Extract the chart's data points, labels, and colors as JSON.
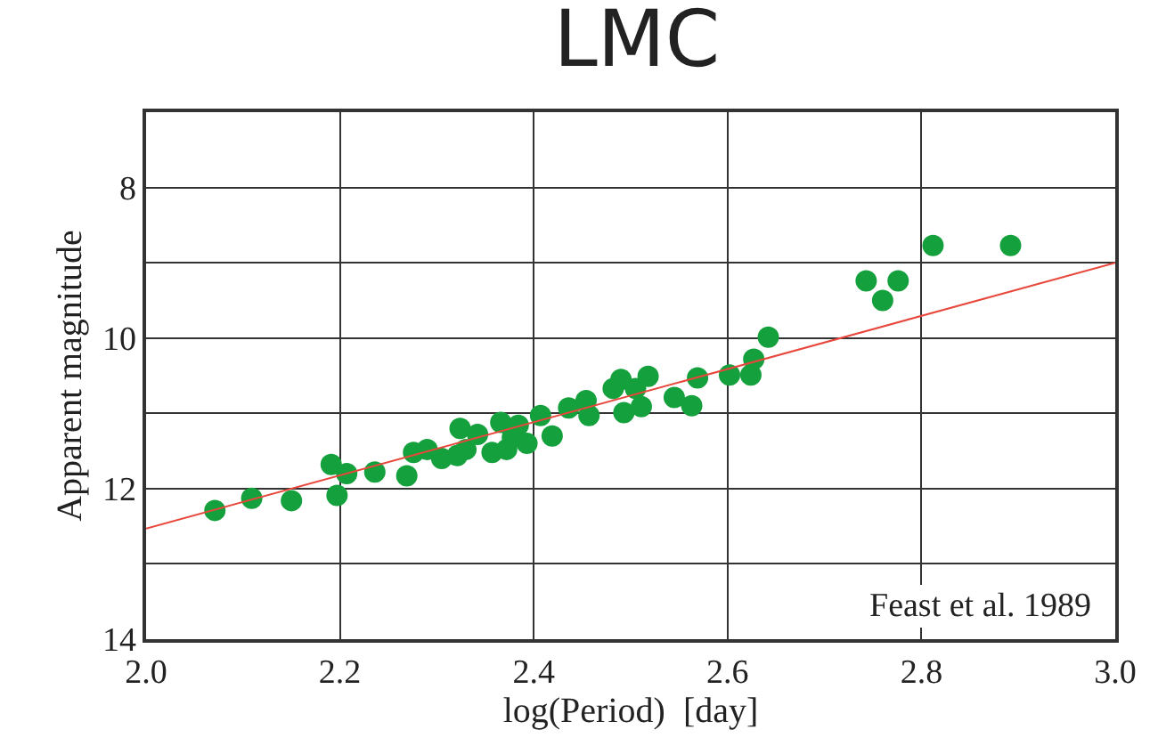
{
  "chart_data": {
    "type": "scatter",
    "title": "LMC",
    "xlabel": "log(Period)  [day]",
    "ylabel": "Apparent magnitude",
    "xlim": [
      2.0,
      3.0
    ],
    "ylim": [
      14,
      7
    ],
    "xticks": [
      {
        "value": 2.0,
        "label": "2.0"
      },
      2.2,
      2.4,
      2.6,
      2.8,
      {
        "value": 3.0,
        "label": "3.0"
      }
    ],
    "yticks": [
      8,
      {
        "value": 9,
        "label": null
      },
      10,
      {
        "value": 11,
        "label": null
      },
      12,
      {
        "value": 13,
        "label": null
      },
      14
    ],
    "grid": true,
    "marker": "circle",
    "annotations": [
      "Feast et al. 1989"
    ],
    "series": [
      {
        "color": "#14a03c",
        "x": [
          2.071,
          2.109,
          2.15,
          2.191,
          2.207,
          2.197,
          2.236,
          2.269,
          2.276,
          2.29,
          2.305,
          2.321,
          2.33,
          2.324,
          2.342,
          2.357,
          2.372,
          2.366,
          2.384,
          2.378,
          2.393,
          2.407,
          2.419,
          2.436,
          2.454,
          2.457,
          2.482,
          2.49,
          2.493,
          2.505,
          2.518,
          2.511,
          2.545,
          2.563,
          2.569,
          2.602,
          2.624,
          2.627,
          2.642,
          2.743,
          2.76,
          2.776,
          2.812,
          2.892
        ],
        "values": [
          12.29,
          12.13,
          12.16,
          11.68,
          11.8,
          12.09,
          11.78,
          11.83,
          11.52,
          11.48,
          11.6,
          11.56,
          11.48,
          11.2,
          11.28,
          11.52,
          11.48,
          11.12,
          11.16,
          11.32,
          11.4,
          11.03,
          11.3,
          10.93,
          10.83,
          11.03,
          10.67,
          10.55,
          10.99,
          10.67,
          10.51,
          10.91,
          10.79,
          10.9,
          10.53,
          10.49,
          10.49,
          10.28,
          9.99,
          9.24,
          9.5,
          9.24,
          8.77,
          8.77
        ]
      },
      {
        "type": "line",
        "color": "#e8483c",
        "line_style": "solid",
        "marker": "none",
        "x": [
          2.0,
          3.0
        ],
        "values": [
          12.53,
          9.0
        ]
      }
    ]
  }
}
